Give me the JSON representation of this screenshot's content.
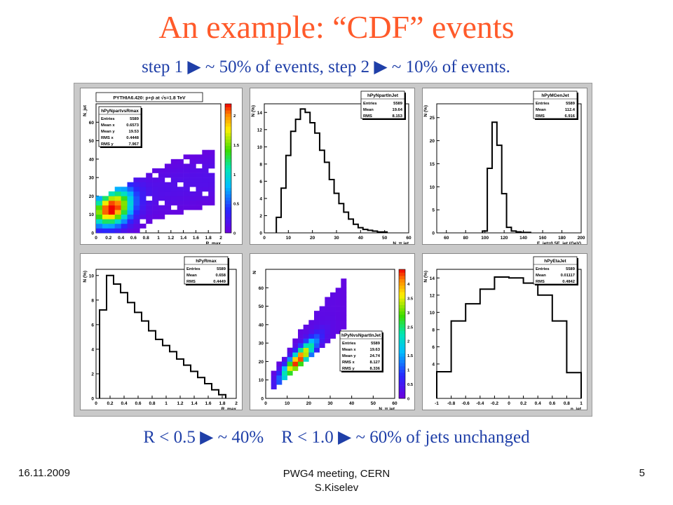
{
  "slide": {
    "title": "An example: “CDF” events",
    "subtitle": "step 1 ▶ ~ 50% of events, step 2 ▶ ~ 10% of events.",
    "bottom_note": "R < 0.5 ▶ ~ 40%    R < 1.0 ▶ ~ 60% of jets unchanged",
    "footer_date": "16.11.2009",
    "footer_meeting": "PWG4 meeting, CERN",
    "footer_author": "S.Kiselev",
    "page_number": "5"
  },
  "chart_data": [
    {
      "id": "p1",
      "type": "heatmap",
      "title": "PYTHIA6.420: p+p̄ at √s=1.8 TeV",
      "xlabel": "R_max",
      "ylabel": "N_jet",
      "xlim": [
        0,
        2
      ],
      "ylim": [
        0,
        70
      ],
      "xticks": [
        "0",
        "0.2",
        "0.4",
        "0.6",
        "0.8",
        "1",
        "1.2",
        "1.4",
        "1.6",
        "1.8",
        "2"
      ],
      "yticks": [
        "0",
        "10",
        "20",
        "30",
        "40",
        "50",
        "60"
      ],
      "zlim": [
        0,
        2.2
      ],
      "zticks": [
        "0",
        "0.5",
        "1",
        "1.5",
        "2"
      ],
      "stats": {
        "name": "hPyNpartvsRmax",
        "rows": [
          [
            "Entries",
            "5589"
          ],
          [
            "Mean x",
            "0.6573"
          ],
          [
            "Mean y",
            "19.53"
          ],
          [
            "RMS x",
            "0.4448"
          ],
          [
            "RMS y",
            "7.967"
          ]
        ]
      }
    },
    {
      "id": "p2",
      "type": "bar",
      "xlabel": "N_π jet",
      "ylabel": "N (%)",
      "xlim": [
        0,
        60
      ],
      "ylim": [
        0,
        15
      ],
      "xticks": [
        "0",
        "10",
        "20",
        "30",
        "40",
        "50",
        "60"
      ],
      "yticks": [
        "0",
        "2",
        "4",
        "6",
        "8",
        "10",
        "12",
        "14"
      ],
      "bin_width": 2,
      "x": [
        6,
        8,
        10,
        12,
        14,
        16,
        18,
        20,
        22,
        24,
        26,
        28,
        30,
        32,
        34,
        36,
        38,
        40,
        42,
        44,
        46,
        48,
        50
      ],
      "values": [
        1.8,
        5.2,
        9.0,
        11.8,
        13.2,
        14.4,
        14.0,
        12.8,
        11.6,
        9.6,
        8.2,
        6.2,
        4.6,
        3.4,
        2.4,
        1.6,
        1.0,
        0.6,
        0.4,
        0.3,
        0.2,
        0.1,
        0.1
      ],
      "stats": {
        "name": "hPyNpartInJet",
        "rows": [
          [
            "Entries",
            "5589"
          ],
          [
            "Mean",
            "19.64"
          ],
          [
            "RMS",
            "8.153"
          ]
        ]
      }
    },
    {
      "id": "p3",
      "type": "bar",
      "xlabel": "E_jet=0.5E_jet (GeV)",
      "ylabel": "N (%)",
      "xlim": [
        50,
        200
      ],
      "ylim": [
        0,
        28
      ],
      "xticks": [
        "60",
        "80",
        "100",
        "120",
        "140",
        "160",
        "180",
        "200"
      ],
      "yticks": [
        "0",
        "5",
        "10",
        "15",
        "20",
        "25"
      ],
      "bin_width": 5,
      "x": [
        100,
        105,
        110,
        115,
        120,
        125,
        130,
        135,
        140,
        145
      ],
      "values": [
        0.4,
        14.0,
        24.0,
        19.0,
        8.5,
        1.2,
        0.4,
        0.2,
        0.1,
        0.1
      ],
      "stats": {
        "name": "hPyMGenJet",
        "rows": [
          [
            "Entries",
            "5589"
          ],
          [
            "Mean",
            "112.4"
          ],
          [
            "RMS",
            "6.916"
          ]
        ]
      }
    },
    {
      "id": "p4",
      "type": "bar",
      "xlabel": "R_max",
      "ylabel": "N (%)",
      "xlim": [
        0,
        2
      ],
      "ylim": [
        0,
        10.5
      ],
      "xticks": [
        "0",
        "0.2",
        "0.4",
        "0.6",
        "0.8",
        "1",
        "1.2",
        "1.4",
        "1.6",
        "1.8",
        "2"
      ],
      "yticks": [
        "0",
        "2",
        "4",
        "6",
        "8",
        "10"
      ],
      "bin_width": 0.1,
      "x": [
        0.1,
        0.2,
        0.3,
        0.4,
        0.5,
        0.6,
        0.7,
        0.8,
        0.9,
        1.0,
        1.1,
        1.2,
        1.3,
        1.4,
        1.5,
        1.6,
        1.7,
        1.8
      ],
      "values": [
        7.2,
        10.0,
        9.3,
        8.6,
        7.8,
        7.0,
        6.3,
        5.5,
        4.8,
        4.3,
        3.8,
        3.2,
        2.7,
        2.2,
        1.7,
        1.2,
        0.7,
        0.3
      ],
      "stats": {
        "name": "hPyRmax",
        "rows": [
          [
            "Entries",
            "5589"
          ],
          [
            "Mean",
            "0.658"
          ],
          [
            "RMS",
            "0.4449"
          ]
        ]
      }
    },
    {
      "id": "p5",
      "type": "heatmap",
      "xlabel": "N_π jet",
      "ylabel": "N",
      "xlim": [
        0,
        60
      ],
      "ylim": [
        0,
        70
      ],
      "xticks": [
        "0",
        "10",
        "20",
        "30",
        "40",
        "50",
        "60"
      ],
      "yticks": [
        "0",
        "10",
        "20",
        "30",
        "40",
        "50",
        "60"
      ],
      "zlim": [
        0,
        4.5
      ],
      "zticks": [
        "0",
        "0.5",
        "1",
        "1.5",
        "2",
        "2.5",
        "3",
        "3.5",
        "4"
      ],
      "stats": {
        "name": "hPyNvsNpartInJet",
        "rows": [
          [
            "Entries",
            "5589"
          ],
          [
            "Mean x",
            "19.63"
          ],
          [
            "Mean y",
            "24.74"
          ],
          [
            "RMS x",
            "8.127"
          ],
          [
            "RMS y",
            "8.336"
          ]
        ]
      }
    },
    {
      "id": "p6",
      "type": "bar",
      "xlabel": "η_jet",
      "ylabel": "N (%)",
      "xlim": [
        -1,
        1
      ],
      "ylim": [
        0,
        15
      ],
      "xticks": [
        "-1",
        "-0.8",
        "-0.6",
        "-0.4",
        "-0.2",
        "0",
        "0.2",
        "0.4",
        "0.6",
        "0.8",
        "1"
      ],
      "yticks": [
        "4",
        "6",
        "8",
        "10",
        "12",
        "14"
      ],
      "bin_width": 0.2,
      "x": [
        -0.9,
        -0.7,
        -0.5,
        -0.3,
        -0.1,
        0.1,
        0.3,
        0.5,
        0.7,
        0.9
      ],
      "values": [
        3.1,
        9.0,
        11.0,
        12.7,
        14.1,
        14.0,
        13.4,
        12.0,
        9.0,
        3.0
      ],
      "stats": {
        "name": "hPyEtaJet",
        "rows": [
          [
            "Entries",
            "5589"
          ],
          [
            "Mean",
            "0.01117"
          ],
          [
            "RMS",
            "0.4842"
          ]
        ]
      }
    }
  ]
}
